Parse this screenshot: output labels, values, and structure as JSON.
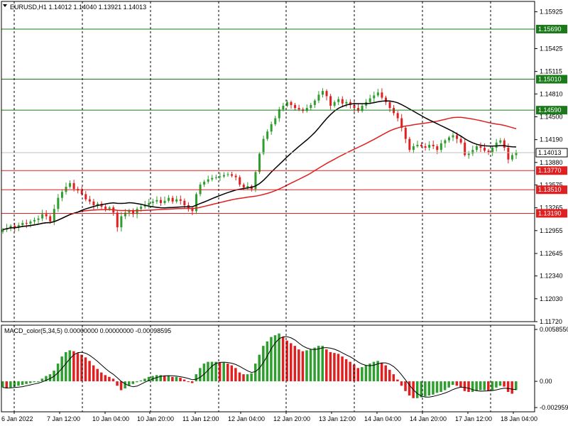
{
  "window": {
    "symbol_info": "EURUSD,H1  1.14012  1.14040  1.13921  1.14013",
    "indicator_info": "MACD_color(5,34,5)  0.00000000  0.00000000  -0.00098595"
  },
  "colors": {
    "bull": "#2e9e2e",
    "bear": "#e02020",
    "ma_fast": "#000000",
    "ma_slow": "#e02020",
    "level_green": "#1a7a1a",
    "level_red": "#e02020",
    "current_price_bg": "#ffffff"
  },
  "chart_data": [
    {
      "type": "candlestick",
      "title": "EURUSD,H1",
      "y_ticks": [
        "1.15925",
        "1.15425",
        "1.15115",
        "1.14810",
        "1.14500",
        "1.14190",
        "1.13880",
        "1.13575",
        "1.13265",
        "1.12955",
        "1.12645",
        "1.12340",
        "1.12030",
        "1.11720"
      ],
      "ylim": [
        1.1172,
        1.1595
      ],
      "levels": [
        {
          "label": "1.15690",
          "value": 1.1569,
          "color": "green"
        },
        {
          "label": "1.15010",
          "value": 1.1501,
          "color": "green"
        },
        {
          "label": "1.14590",
          "value": 1.1459,
          "color": "green"
        },
        {
          "label": "1.13770",
          "value": 1.1377,
          "color": "red"
        },
        {
          "label": "1.13510",
          "value": 1.1351,
          "color": "red"
        },
        {
          "label": "1.13190",
          "value": 1.1319,
          "color": "red"
        }
      ],
      "current_price": {
        "label": "1.14013",
        "value": 1.14013
      },
      "x_labels": [
        "6 Jan 2022",
        "7 Jan 12:00",
        "10 Jan 04:00",
        "10 Jan 20:00",
        "11 Jan 12:00",
        "12 Jan 04:00",
        "12 Jan 20:00",
        "13 Jan 12:00",
        "14 Jan 04:00",
        "14 Jan 20:00",
        "17 Jan 12:00",
        "18 Jan 04:00"
      ],
      "closes": [
        1.1297,
        1.1299,
        1.1302,
        1.13,
        1.1303,
        1.1306,
        1.1305,
        1.1308,
        1.131,
        1.1312,
        1.1318,
        1.1315,
        1.1308,
        1.1325,
        1.134,
        1.1348,
        1.1355,
        1.136,
        1.1352,
        1.135,
        1.1345,
        1.1338,
        1.1335,
        1.133,
        1.1332,
        1.1328,
        1.1325,
        1.1327,
        1.132,
        1.13,
        1.1315,
        1.132,
        1.1322,
        1.1318,
        1.1325,
        1.1328,
        1.133,
        1.1333,
        1.1335,
        1.1337,
        1.1333,
        1.1336,
        1.134,
        1.1335,
        1.1338,
        1.1336,
        1.133,
        1.1325,
        1.1322,
        1.1345,
        1.1358,
        1.1362,
        1.1365,
        1.1367,
        1.1368,
        1.1369,
        1.1371,
        1.1372,
        1.137,
        1.1368,
        1.1358,
        1.1354,
        1.1356,
        1.1352,
        1.1375,
        1.14,
        1.142,
        1.143,
        1.144,
        1.1448,
        1.146,
        1.1465,
        1.147,
        1.1466,
        1.1462,
        1.146,
        1.1458,
        1.1462,
        1.1466,
        1.1472,
        1.148,
        1.1485,
        1.1478,
        1.1465,
        1.147,
        1.1474,
        1.1468,
        1.147,
        1.1466,
        1.1462,
        1.1458,
        1.1465,
        1.147,
        1.1475,
        1.1479,
        1.1483,
        1.1476,
        1.147,
        1.1462,
        1.1455,
        1.1448,
        1.1435,
        1.142,
        1.1405,
        1.141,
        1.1412,
        1.141,
        1.1408,
        1.1412,
        1.141,
        1.1405,
        1.1414,
        1.1418,
        1.1422,
        1.1425,
        1.142,
        1.1415,
        1.1398,
        1.14,
        1.1405,
        1.141,
        1.1408,
        1.1404,
        1.1402,
        1.1408,
        1.1415,
        1.1418,
        1.1408,
        1.1392,
        1.1398,
        1.14013
      ],
      "macd": {
        "ylim": [
          -0.002959,
          0.005855
        ],
        "y_ticks": [
          "0.0058550",
          "0.00",
          "-0.0029590"
        ],
        "values": [
          -0.0007,
          -0.0008,
          -0.0007,
          -0.0006,
          -0.0005,
          -0.0004,
          -0.0003,
          -0.0002,
          -0.0001,
          0.0,
          0.0003,
          0.0006,
          0.0008,
          0.0012,
          0.002,
          0.0028,
          0.0033,
          0.0035,
          0.0034,
          0.0032,
          0.003,
          0.0027,
          0.0023,
          0.0018,
          0.0014,
          0.001,
          0.0007,
          0.0005,
          0.0003,
          -0.0005,
          -0.001,
          -0.0008,
          -0.0005,
          -0.0003,
          -0.0001,
          0.0001,
          0.0003,
          0.0005,
          0.0006,
          0.0007,
          0.0007,
          0.0006,
          0.0006,
          0.0005,
          0.0005,
          0.0004,
          0.0002,
          0.0,
          -0.0002,
          0.0008,
          0.0015,
          0.002,
          0.0022,
          0.0022,
          0.0022,
          0.0021,
          0.0021,
          0.002,
          0.0018,
          0.0015,
          0.001,
          0.0008,
          0.0008,
          0.0009,
          0.002,
          0.003,
          0.004,
          0.0045,
          0.005,
          0.0052,
          0.0054,
          0.005,
          0.0046,
          0.0043,
          0.004,
          0.0036,
          0.0034,
          0.0035,
          0.0036,
          0.0038,
          0.004,
          0.004,
          0.0036,
          0.0033,
          0.0032,
          0.0031,
          0.0028,
          0.0025,
          0.0022,
          0.0019,
          0.0015,
          0.0016,
          0.0018,
          0.002,
          0.0022,
          0.0023,
          0.0021,
          0.0018,
          0.0013,
          0.0008,
          0.0002,
          -0.0005,
          -0.0011,
          -0.0016,
          -0.0019,
          -0.0019,
          -0.0018,
          -0.0017,
          -0.0016,
          -0.0015,
          -0.0013,
          -0.0012,
          -0.001,
          -0.0007,
          -0.0004,
          -0.0005,
          -0.0007,
          -0.0011,
          -0.0012,
          -0.0012,
          -0.0011,
          -0.001,
          -0.001,
          -0.0011,
          -0.001,
          -0.0007,
          -0.0005,
          -0.0006,
          -0.0012,
          -0.0014,
          -0.00098595
        ]
      }
    }
  ]
}
